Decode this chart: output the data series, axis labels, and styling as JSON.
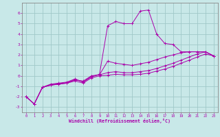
{
  "xlabel": "Windchill (Refroidissement éolien,°C)",
  "bg_color": "#c8e8e8",
  "grid_color": "#a0c8c8",
  "line_color": "#aa00aa",
  "spine_color": "#888888",
  "xlim": [
    -0.5,
    23.5
  ],
  "ylim": [
    -3.5,
    7.0
  ],
  "xticks": [
    0,
    1,
    2,
    3,
    4,
    5,
    6,
    7,
    8,
    9,
    10,
    11,
    12,
    13,
    14,
    15,
    16,
    17,
    18,
    19,
    20,
    21,
    22,
    23
  ],
  "yticks": [
    -3,
    -2,
    -1,
    0,
    1,
    2,
    3,
    4,
    5,
    6
  ],
  "curves": [
    {
      "x": [
        0,
        1,
        2,
        3,
        4,
        5,
        6,
        7,
        8,
        9,
        10,
        11,
        12,
        13,
        14,
        15,
        16,
        17,
        18,
        19,
        20,
        21,
        22,
        23
      ],
      "y": [
        -2.0,
        -2.7,
        -1.1,
        -0.8,
        -0.7,
        -0.6,
        -0.3,
        -0.6,
        -0.1,
        0.15,
        4.8,
        5.2,
        5.0,
        5.0,
        6.2,
        6.3,
        4.0,
        3.1,
        3.0,
        2.3,
        2.3,
        2.3,
        2.3,
        1.9
      ]
    },
    {
      "x": [
        0,
        1,
        2,
        3,
        4,
        5,
        6,
        7,
        8,
        9,
        10,
        11,
        12,
        13,
        14,
        15,
        16,
        17,
        18,
        19,
        20,
        21,
        22,
        23
      ],
      "y": [
        -2.0,
        -2.7,
        -1.1,
        -0.9,
        -0.8,
        -0.7,
        -0.5,
        -0.7,
        -0.2,
        0.0,
        0.05,
        0.15,
        0.1,
        0.1,
        0.15,
        0.25,
        0.45,
        0.65,
        0.9,
        1.2,
        1.5,
        1.8,
        2.1,
        1.9
      ]
    },
    {
      "x": [
        0,
        1,
        2,
        3,
        4,
        5,
        6,
        7,
        8,
        9,
        10,
        11,
        12,
        13,
        14,
        15,
        16,
        17,
        18,
        19,
        20,
        21,
        22,
        23
      ],
      "y": [
        -2.0,
        -2.7,
        -1.1,
        -0.9,
        -0.8,
        -0.7,
        -0.4,
        -0.5,
        0.0,
        0.1,
        0.3,
        0.4,
        0.3,
        0.3,
        0.4,
        0.5,
        0.7,
        0.95,
        1.2,
        1.5,
        1.8,
        2.1,
        2.3,
        1.9
      ]
    },
    {
      "x": [
        0,
        1,
        2,
        3,
        4,
        5,
        6,
        7,
        8,
        9,
        10,
        11,
        12,
        13,
        14,
        15,
        16,
        17,
        18,
        19,
        20,
        21,
        22,
        23
      ],
      "y": [
        -2.0,
        -2.7,
        -1.1,
        -0.85,
        -0.75,
        -0.65,
        -0.35,
        -0.6,
        -0.05,
        0.1,
        1.4,
        1.2,
        1.1,
        1.0,
        1.15,
        1.3,
        1.55,
        1.8,
        2.0,
        2.2,
        2.3,
        2.3,
        2.3,
        1.9
      ]
    }
  ]
}
